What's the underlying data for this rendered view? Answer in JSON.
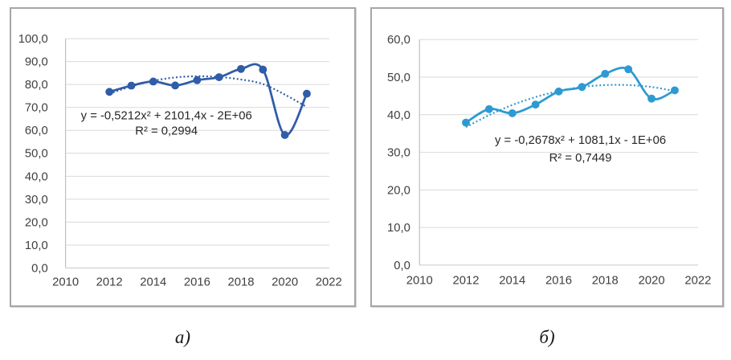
{
  "page": {
    "background": "#ffffff",
    "grid_color": "#d9d9d9",
    "axis_color": "#bfbfbf",
    "tick_text_color": "#404040",
    "equation_text_color": "#262626"
  },
  "chart_data": [
    {
      "id": "a",
      "type": "line",
      "caption": "а)",
      "line_color": "#2f5da8",
      "x": [
        2012,
        2013,
        2014,
        2015,
        2016,
        2017,
        2018,
        2019,
        2020,
        2021
      ],
      "series": [
        {
          "name": "data",
          "style": "solid-markers",
          "values": [
            76.8,
            79.5,
            81.3,
            79.6,
            81.9,
            83.2,
            86.8,
            86.5,
            58.0,
            76.0
          ]
        },
        {
          "name": "polynomial-trend",
          "style": "dotted",
          "values": [
            76.0,
            79.2,
            81.6,
            83.1,
            83.6,
            83.3,
            82.2,
            80.2,
            75.6,
            70.2
          ]
        }
      ],
      "equation": "y = -0,5212x² + 2101,4x - 2E+06",
      "r_squared": "R² = 0,2994",
      "xlim": [
        2010,
        2022
      ],
      "ylim": [
        0,
        100
      ],
      "y_ticks": [
        "0,0",
        "10,0",
        "20,0",
        "30,0",
        "40,0",
        "50,0",
        "60,0",
        "70,0",
        "80,0",
        "90,0",
        "100,0"
      ],
      "x_ticks": [
        "2010",
        "2012",
        "2014",
        "2016",
        "2018",
        "2020",
        "2022"
      ],
      "grid": "horizontal",
      "legend": "none"
    },
    {
      "id": "b",
      "type": "line",
      "caption": "б)",
      "line_color": "#2e9ad2",
      "x": [
        2012,
        2013,
        2014,
        2015,
        2016,
        2017,
        2018,
        2019,
        2020,
        2021
      ],
      "series": [
        {
          "name": "data",
          "style": "solid-markers",
          "values": [
            37.9,
            41.5,
            40.4,
            42.7,
            46.2,
            47.4,
            50.9,
            52.1,
            44.3,
            46.5
          ]
        },
        {
          "name": "polynomial-trend",
          "style": "dotted",
          "values": [
            36.7,
            39.9,
            42.6,
            44.7,
            46.3,
            47.4,
            47.9,
            47.9,
            47.4,
            46.3
          ]
        }
      ],
      "equation": "y = -0,2678x² + 1081,1x - 1E+06",
      "r_squared": "R² = 0,7449",
      "xlim": [
        2010,
        2022
      ],
      "ylim": [
        0,
        60
      ],
      "y_ticks": [
        "0,0",
        "10,0",
        "20,0",
        "30,0",
        "40,0",
        "50,0",
        "60,0"
      ],
      "x_ticks": [
        "2010",
        "2012",
        "2014",
        "2016",
        "2018",
        "2020",
        "2022"
      ],
      "grid": "horizontal",
      "legend": "none"
    }
  ]
}
